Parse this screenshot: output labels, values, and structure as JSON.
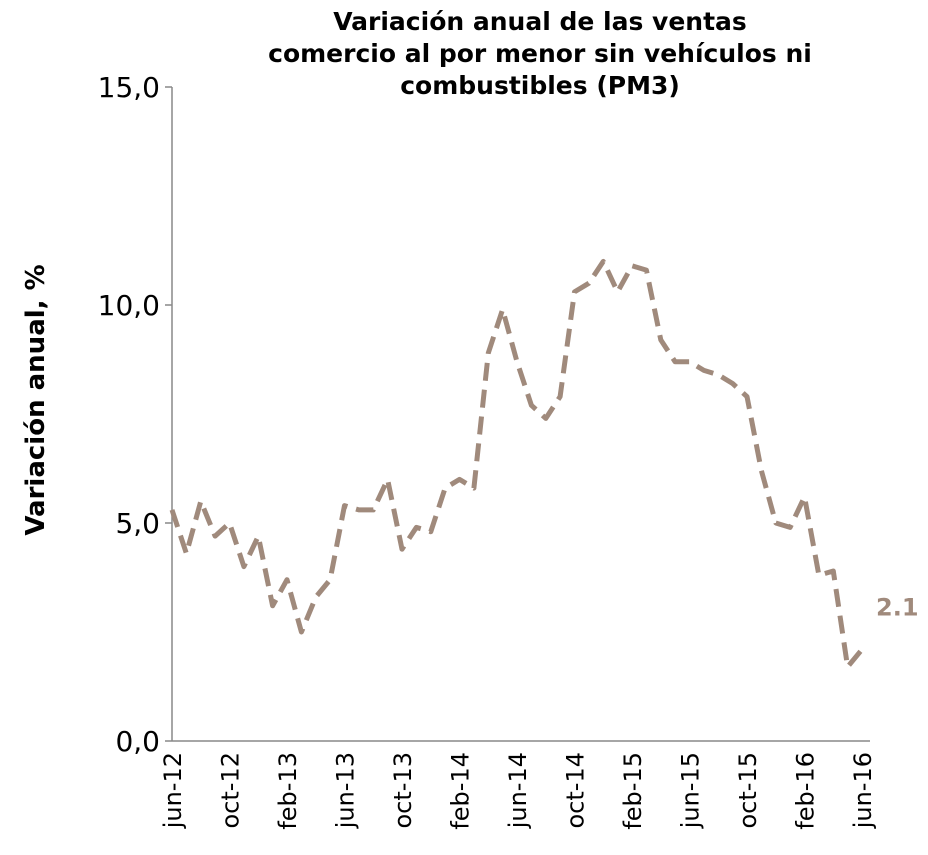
{
  "chart_data": {
    "type": "line",
    "title": "Variación anual de las ventas\ncomercio al por menor sin vehículos ni\ncombustibles (PM3)",
    "y_label": "Variación anual, %",
    "categories": [
      "jun-12",
      null,
      null,
      null,
      "oct-12",
      null,
      null,
      null,
      "feb-13",
      null,
      null,
      null,
      "jun-13",
      null,
      null,
      null,
      "oct-13",
      null,
      null,
      null,
      "feb-14",
      null,
      null,
      null,
      "jun-14",
      null,
      null,
      null,
      "oct-14",
      null,
      null,
      null,
      "feb-15",
      null,
      null,
      null,
      "jun-15",
      null,
      null,
      null,
      "oct-15",
      null,
      null,
      null,
      "feb-16",
      null,
      null,
      null,
      "jun-16"
    ],
    "series": [
      {
        "name": "PM3",
        "color": "#a08a7c",
        "dashed": true,
        "values": [
          5.3,
          4.3,
          5.5,
          4.7,
          5.0,
          4.0,
          4.7,
          3.1,
          3.7,
          2.5,
          3.3,
          3.7,
          5.4,
          5.3,
          5.3,
          6.0,
          4.4,
          4.9,
          4.8,
          5.8,
          6.0,
          5.8,
          8.9,
          9.9,
          8.7,
          7.7,
          7.4,
          7.9,
          10.3,
          10.5,
          11.0,
          10.3,
          10.9,
          10.8,
          9.2,
          8.7,
          8.7,
          8.5,
          8.4,
          8.2,
          7.9,
          6.2,
          5.0,
          4.9,
          5.6,
          3.8,
          3.9,
          1.7,
          2.1
        ]
      }
    ],
    "ylim": [
      0,
      15
    ],
    "yticks": [
      {
        "value": 0,
        "label": "0,0"
      },
      {
        "value": 5,
        "label": "5,0"
      },
      {
        "value": 10,
        "label": "10,0"
      },
      {
        "value": 15,
        "label": "15,0"
      }
    ]
  }
}
